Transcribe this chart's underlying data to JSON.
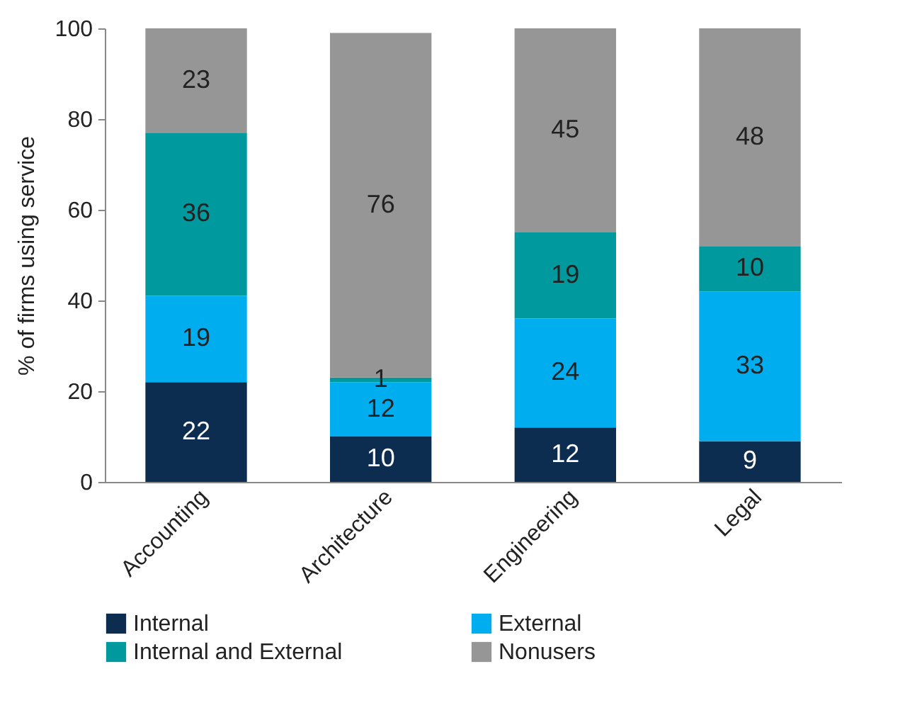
{
  "chart_data": {
    "type": "bar",
    "stacked": true,
    "ylabel": "% of firms using service",
    "categories": [
      "Accounting",
      "Architecture",
      "Engineering",
      "Legal"
    ],
    "series": [
      {
        "name": "Internal",
        "color": "#0c2d4f",
        "values": [
          22,
          10,
          12,
          9
        ]
      },
      {
        "name": "External",
        "color": "#00aeef",
        "values": [
          19,
          12,
          24,
          33
        ]
      },
      {
        "name": "Internal and External",
        "color": "#00999e",
        "values": [
          36,
          1,
          19,
          10
        ]
      },
      {
        "name": "Nonusers",
        "color": "#969696",
        "values": [
          23,
          76,
          45,
          48
        ]
      }
    ],
    "ylim": [
      0,
      100
    ],
    "yticks": [
      0,
      20,
      40,
      60,
      80,
      100
    ],
    "data_labels": true,
    "grid": false,
    "legend": "bottom"
  }
}
